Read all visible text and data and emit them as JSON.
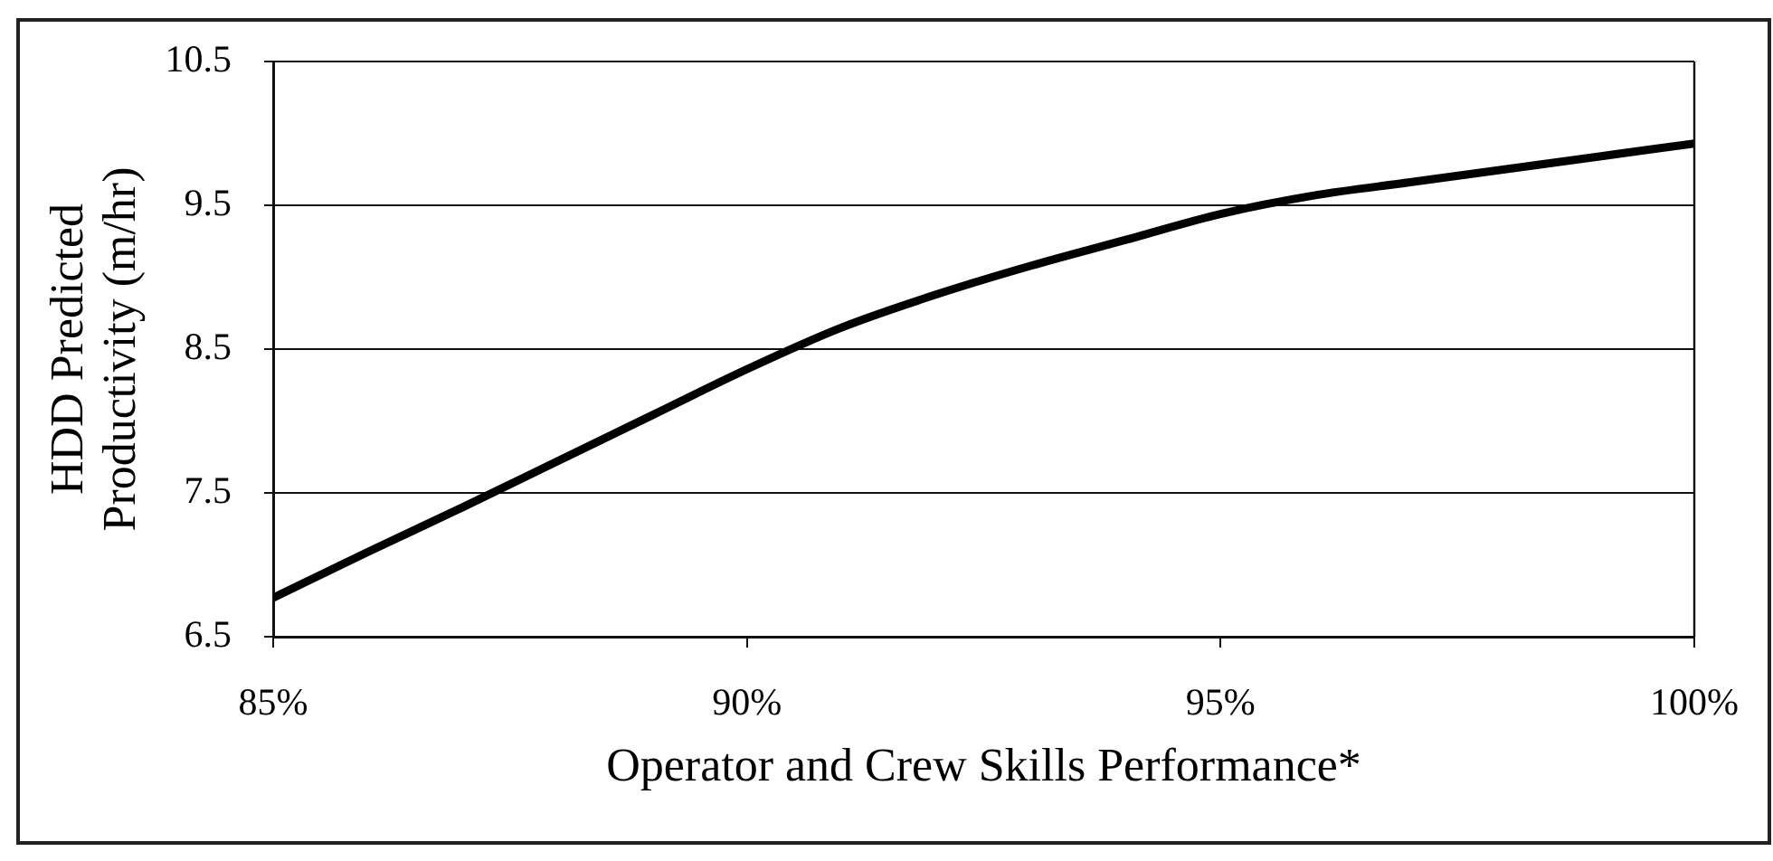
{
  "chart_data": {
    "type": "line",
    "xlabel": "Operator and Crew Skills Performance*",
    "ylabel": "HDD Predicted Productivity (m/hr)",
    "x": [
      85,
      86,
      87,
      88,
      89,
      90,
      91,
      92,
      93,
      94,
      95,
      96,
      97,
      98,
      99,
      100
    ],
    "series": [
      {
        "color": "#000000",
        "values": [
          6.77,
          7.09,
          7.4,
          7.72,
          8.04,
          8.36,
          8.65,
          8.88,
          9.08,
          9.26,
          9.44,
          9.57,
          9.66,
          9.75,
          9.84,
          9.93
        ]
      }
    ],
    "xlim": [
      85,
      100
    ],
    "xticks": [
      {
        "value": 85,
        "label": "85%"
      },
      {
        "value": 90,
        "label": "90%"
      },
      {
        "value": 95,
        "label": "95%"
      },
      {
        "value": 100,
        "label": "100%"
      }
    ],
    "ylim": [
      6.5,
      10.5
    ],
    "yticks": [
      6.5,
      7.5,
      8.5,
      9.5,
      10.5
    ],
    "grid": "y"
  }
}
